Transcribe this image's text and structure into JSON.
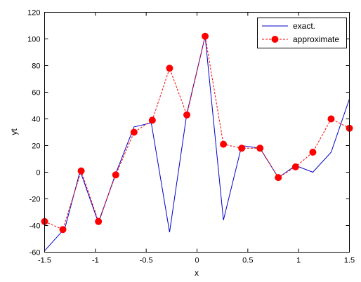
{
  "chart_data": {
    "type": "line",
    "title": "",
    "xlabel": "x",
    "ylabel": "yt",
    "xlim": [
      -1.5,
      1.5
    ],
    "ylim": [
      -60,
      120
    ],
    "xticks": [
      -1.5,
      -1,
      -0.5,
      0,
      0.5,
      1,
      1.5
    ],
    "xtick_labels": [
      "-1.5",
      "-1",
      "-0.5",
      "0",
      "0.5",
      "1",
      "1.5"
    ],
    "yticks": [
      -60,
      -40,
      -20,
      0,
      20,
      40,
      60,
      80,
      100,
      120
    ],
    "ytick_labels": [
      "-60",
      "-40",
      "-20",
      "0",
      "20",
      "40",
      "60",
      "80",
      "100",
      "120"
    ],
    "grid": false,
    "legend_position": "top-right",
    "series": [
      {
        "name": "exact.",
        "color": "#0000cc",
        "style": "solid",
        "marker": "none",
        "x": [
          -1.5,
          -1.3,
          -1.15,
          -0.97,
          -0.8,
          -0.62,
          -0.45,
          -0.27,
          -0.1,
          0.08,
          0.26,
          0.44,
          0.62,
          0.8,
          0.97,
          1.14,
          1.32,
          1.5
        ],
        "y": [
          -59,
          -42,
          1,
          -38,
          -1,
          34,
          37,
          -45,
          44,
          102,
          -36,
          20,
          18,
          -4,
          5,
          0,
          15,
          55
        ]
      },
      {
        "name": "approximate",
        "color": "#ff0000",
        "style": "dashed",
        "marker": "circle",
        "x": [
          -1.5,
          -1.32,
          -1.14,
          -0.97,
          -0.8,
          -0.62,
          -0.44,
          -0.27,
          -0.1,
          0.08,
          0.26,
          0.44,
          0.62,
          0.8,
          0.97,
          1.14,
          1.32,
          1.5
        ],
        "y": [
          -37,
          -43,
          1,
          -37,
          -2,
          30,
          39,
          78,
          43,
          102,
          21,
          18,
          18,
          -4,
          4,
          15,
          40,
          33
        ]
      }
    ]
  }
}
